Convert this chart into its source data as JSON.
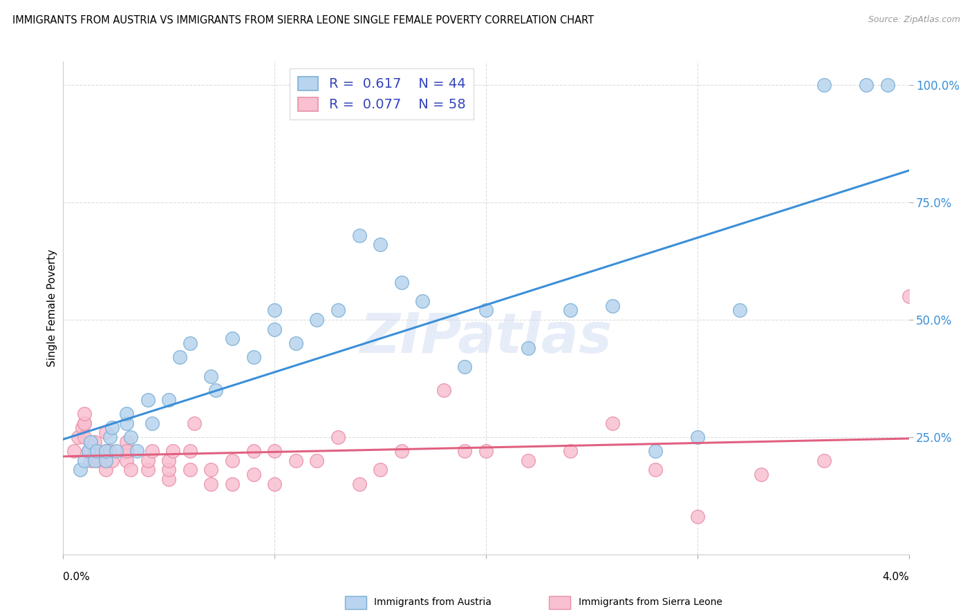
{
  "title": "IMMIGRANTS FROM AUSTRIA VS IMMIGRANTS FROM SIERRA LEONE SINGLE FEMALE POVERTY CORRELATION CHART",
  "source": "Source: ZipAtlas.com",
  "ylabel": "Single Female Poverty",
  "xlim": [
    0,
    0.04
  ],
  "ylim": [
    0.0,
    1.05
  ],
  "yticks": [
    0.25,
    0.5,
    0.75,
    1.0
  ],
  "ytick_labels": [
    "25.0%",
    "50.0%",
    "75.0%",
    "100.0%"
  ],
  "xticks": [
    0.0,
    0.01,
    0.02,
    0.03,
    0.04
  ],
  "austria_color": "#b8d4ee",
  "austria_edge": "#7bafd4",
  "sierra_leone_color": "#f8c0d0",
  "sierra_leone_edge": "#e890a8",
  "line_austria_color": "#3a8fd8",
  "line_sierra_leone_color": "#e06080",
  "R_austria": 0.617,
  "N_austria": 44,
  "R_sierra_leone": 0.077,
  "N_sierra_leone": 58,
  "legend_text_color": "#3344bb",
  "watermark": "ZIPatlas",
  "austria_x": [
    0.0008,
    0.001,
    0.0012,
    0.0013,
    0.0015,
    0.0016,
    0.002,
    0.002,
    0.0022,
    0.0023,
    0.0025,
    0.003,
    0.003,
    0.0032,
    0.0035,
    0.004,
    0.0042,
    0.005,
    0.0055,
    0.006,
    0.007,
    0.0072,
    0.008,
    0.009,
    0.01,
    0.01,
    0.011,
    0.012,
    0.013,
    0.014,
    0.015,
    0.016,
    0.017,
    0.019,
    0.02,
    0.022,
    0.024,
    0.026,
    0.028,
    0.03,
    0.032,
    0.036,
    0.038,
    0.039
  ],
  "austria_y": [
    0.18,
    0.2,
    0.22,
    0.24,
    0.2,
    0.22,
    0.2,
    0.22,
    0.25,
    0.27,
    0.22,
    0.28,
    0.3,
    0.25,
    0.22,
    0.33,
    0.28,
    0.33,
    0.42,
    0.45,
    0.38,
    0.35,
    0.46,
    0.42,
    0.52,
    0.48,
    0.45,
    0.5,
    0.52,
    0.68,
    0.66,
    0.58,
    0.54,
    0.4,
    0.52,
    0.44,
    0.52,
    0.53,
    0.22,
    0.25,
    0.52,
    1.0,
    1.0,
    1.0
  ],
  "sierra_leone_x": [
    0.0005,
    0.0007,
    0.0009,
    0.001,
    0.001,
    0.001,
    0.001,
    0.0012,
    0.0013,
    0.0015,
    0.0015,
    0.0017,
    0.002,
    0.002,
    0.002,
    0.002,
    0.0022,
    0.0023,
    0.003,
    0.003,
    0.003,
    0.003,
    0.0032,
    0.004,
    0.004,
    0.0042,
    0.005,
    0.005,
    0.005,
    0.0052,
    0.006,
    0.006,
    0.0062,
    0.007,
    0.007,
    0.008,
    0.008,
    0.009,
    0.009,
    0.01,
    0.01,
    0.011,
    0.012,
    0.013,
    0.014,
    0.015,
    0.016,
    0.018,
    0.019,
    0.02,
    0.022,
    0.024,
    0.026,
    0.028,
    0.03,
    0.033,
    0.036,
    0.04
  ],
  "sierra_leone_y": [
    0.22,
    0.25,
    0.27,
    0.25,
    0.28,
    0.28,
    0.3,
    0.22,
    0.2,
    0.22,
    0.24,
    0.2,
    0.18,
    0.2,
    0.22,
    0.26,
    0.22,
    0.2,
    0.2,
    0.22,
    0.24,
    0.22,
    0.18,
    0.18,
    0.2,
    0.22,
    0.16,
    0.18,
    0.2,
    0.22,
    0.18,
    0.22,
    0.28,
    0.15,
    0.18,
    0.15,
    0.2,
    0.17,
    0.22,
    0.15,
    0.22,
    0.2,
    0.2,
    0.25,
    0.15,
    0.18,
    0.22,
    0.35,
    0.22,
    0.22,
    0.2,
    0.22,
    0.28,
    0.18,
    0.08,
    0.17,
    0.2,
    0.55
  ]
}
